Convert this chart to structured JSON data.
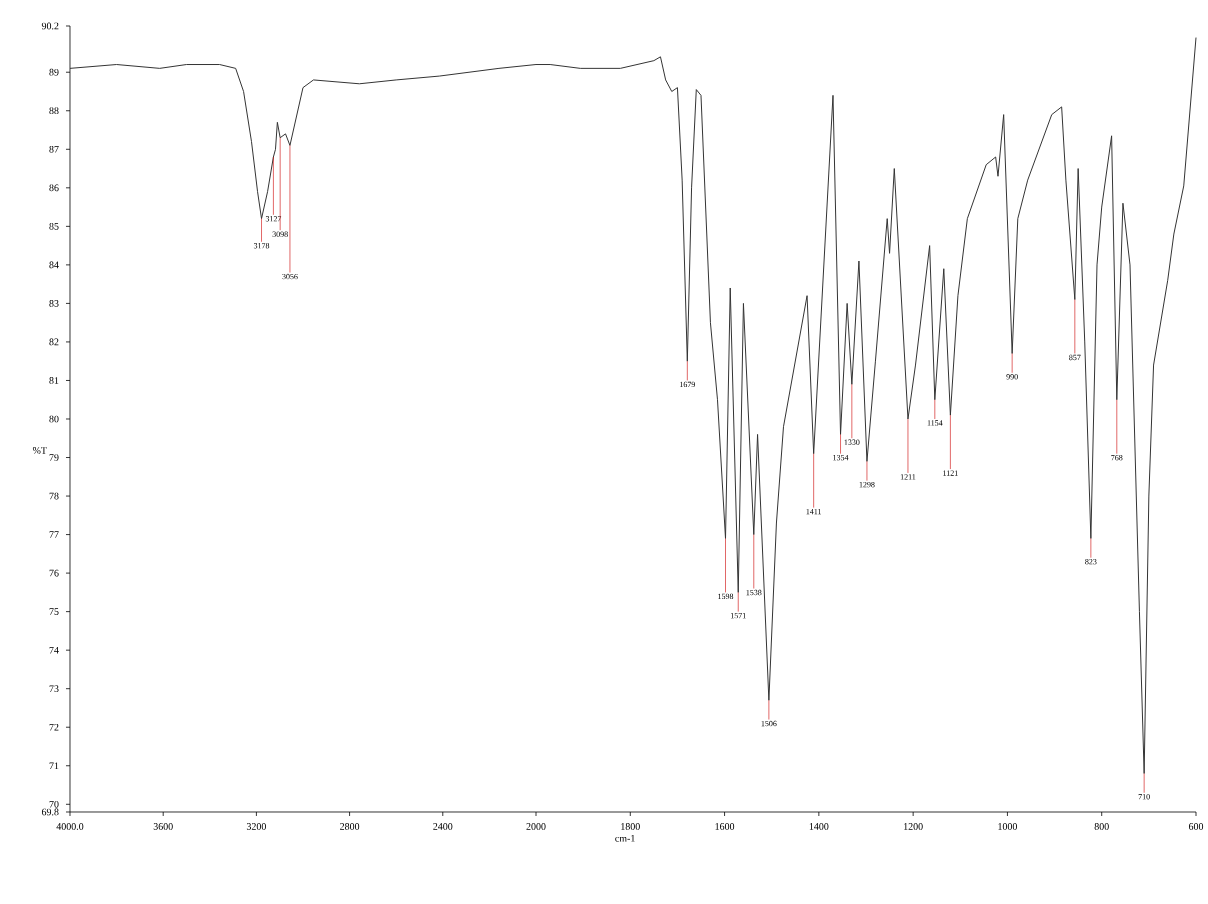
{
  "chart_data": [
    {
      "type": "line",
      "ylabel": "%T",
      "xlim": [
        4000,
        2000
      ],
      "ylim": [
        69.8,
        90.2
      ],
      "xticks": [
        {
          "value": 4000,
          "label": "4000.0"
        },
        3600,
        3200,
        2800,
        2400
      ],
      "yticks": [
        69.8,
        70,
        71,
        72,
        73,
        74,
        75,
        76,
        77,
        78,
        79,
        80,
        81,
        82,
        83,
        84,
        85,
        86,
        87,
        88,
        89,
        90.2
      ],
      "series": [
        {
          "color": "#333333",
          "x": [
            4000,
            3800,
            3615,
            3500,
            3358,
            3289,
            3255,
            3221,
            3195,
            3178,
            3152,
            3127,
            3118,
            3110,
            3098,
            3075,
            3056,
            3000,
            2955,
            2758,
            2600,
            2415,
            2159,
            2000
          ],
          "values": [
            89.1,
            89.2,
            89.1,
            89.2,
            89.2,
            89.1,
            88.5,
            87.2,
            85.9,
            85.2,
            85.9,
            86.8,
            87.0,
            87.7,
            87.3,
            87.4,
            87.1,
            88.6,
            88.8,
            88.7,
            88.8,
            88.9,
            89.1,
            89.2
          ]
        }
      ],
      "annotations": [
        {
          "text": "3178",
          "x": 3178,
          "y": 85.2
        },
        {
          "text": "3127",
          "x": 3127,
          "y": 86.8
        },
        {
          "text": "3098",
          "x": 3098,
          "y": 87.3
        },
        {
          "text": "3056",
          "x": 3056,
          "y": 87.1
        }
      ]
    },
    {
      "type": "line",
      "xlabel": "cm-1",
      "xlim": [
        2000,
        600
      ],
      "ylim": [
        69.8,
        90.2
      ],
      "tick_labels": "x",
      "xticks": [
        2000,
        1800,
        1600,
        1400,
        1200,
        1000,
        800,
        600
      ],
      "series": [
        {
          "color": "#333333",
          "x": [
            2000,
            1970,
            1906,
            1821,
            1750,
            1736,
            1725,
            1712,
            1700,
            1690,
            1679,
            1670,
            1660,
            1650,
            1630,
            1615,
            1598,
            1588,
            1571,
            1560,
            1538,
            1530,
            1506,
            1490,
            1475,
            1425,
            1411,
            1370,
            1354,
            1340,
            1330,
            1315,
            1298,
            1280,
            1255,
            1250,
            1240,
            1211,
            1195,
            1165,
            1154,
            1135,
            1121,
            1105,
            1085,
            1045,
            1025,
            1020,
            1008,
            990,
            978,
            957,
            906,
            885,
            876,
            857,
            850,
            836,
            823,
            810,
            800,
            779,
            768,
            755,
            740,
            720,
            710,
            700,
            690,
            660,
            647,
            626,
            600
          ],
          "values": [
            89.2,
            89.2,
            89.1,
            89.1,
            89.3,
            89.4,
            88.8,
            88.5,
            88.6,
            86.2,
            81.5,
            86.0,
            88.55,
            88.4,
            82.5,
            80.5,
            76.9,
            83.4,
            75.5,
            83.0,
            77.0,
            79.6,
            72.7,
            77.3,
            79.8,
            83.2,
            79.1,
            88.4,
            79.6,
            83.0,
            80.9,
            84.1,
            78.9,
            81.5,
            85.2,
            84.3,
            86.5,
            80.0,
            81.4,
            84.5,
            80.5,
            83.9,
            80.1,
            83.2,
            85.2,
            86.6,
            86.8,
            86.3,
            87.9,
            81.7,
            85.2,
            86.2,
            87.9,
            88.1,
            86.2,
            83.1,
            86.5,
            82.0,
            76.9,
            84.0,
            85.5,
            87.35,
            80.5,
            85.6,
            84.0,
            75.0,
            70.8,
            78.0,
            81.4,
            83.6,
            84.8,
            86.05,
            89.9
          ]
        }
      ],
      "annotations": [
        {
          "text": "1679",
          "x": 1679,
          "y": 81.5
        },
        {
          "text": "1598",
          "x": 1598,
          "y": 76.9
        },
        {
          "text": "1571",
          "x": 1571,
          "y": 75.5
        },
        {
          "text": "1538",
          "x": 1538,
          "y": 77.0
        },
        {
          "text": "1506",
          "x": 1506,
          "y": 72.7
        },
        {
          "text": "1411",
          "x": 1411,
          "y": 79.1
        },
        {
          "text": "1354",
          "x": 1354,
          "y": 79.6
        },
        {
          "text": "1330",
          "x": 1330,
          "y": 80.9
        },
        {
          "text": "1298",
          "x": 1298,
          "y": 78.9
        },
        {
          "text": "1211",
          "x": 1211,
          "y": 80.0
        },
        {
          "text": "1154",
          "x": 1154,
          "y": 80.5
        },
        {
          "text": "1121",
          "x": 1121,
          "y": 80.1
        },
        {
          "text": "990",
          "x": 990,
          "y": 81.7
        },
        {
          "text": "857",
          "x": 857,
          "y": 83.1
        },
        {
          "text": "823",
          "x": 823,
          "y": 76.9
        },
        {
          "text": "768",
          "x": 768,
          "y": 80.5
        },
        {
          "text": "710",
          "x": 710,
          "y": 70.8
        }
      ]
    }
  ]
}
